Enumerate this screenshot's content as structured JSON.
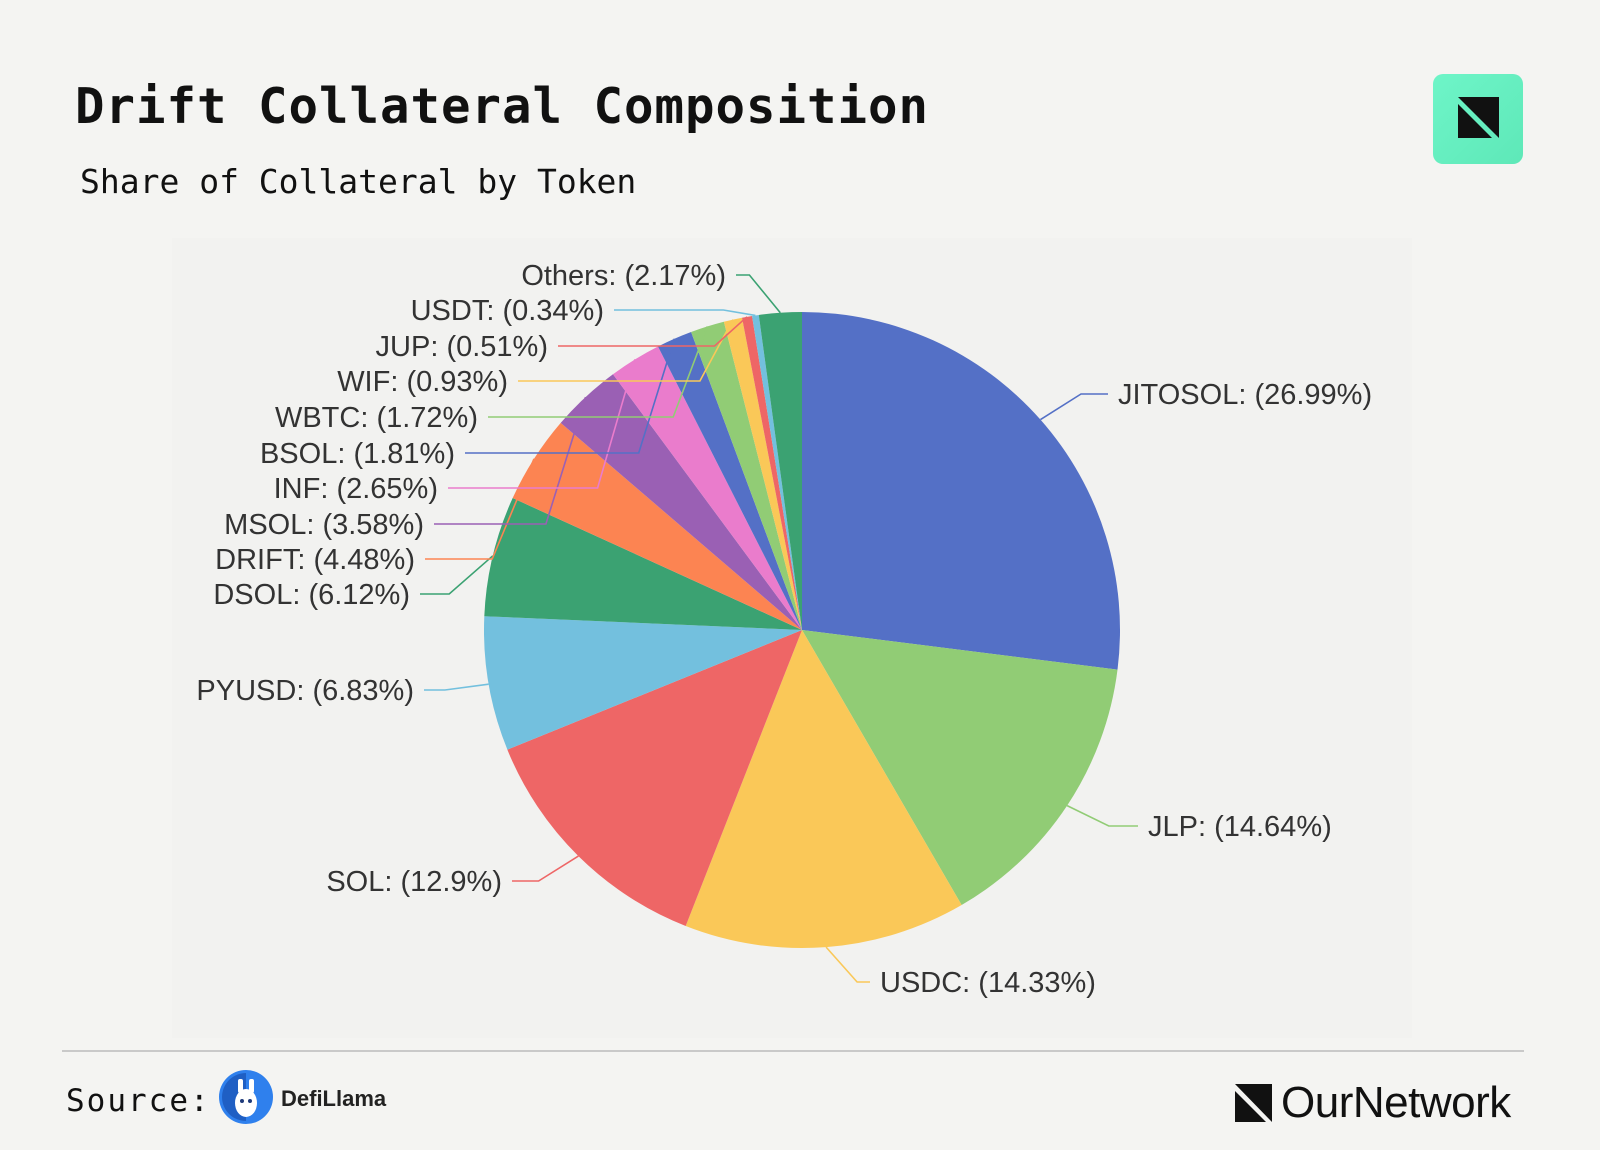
{
  "header": {
    "title": "Drift Collateral Composition",
    "subtitle": "Share of Collateral by Token",
    "brand_icon": "ournetwork-mark-icon"
  },
  "footer": {
    "source_label": "Source:",
    "source_name": "DefiLlama",
    "source_icon": "defillama-llama-icon",
    "publisher_name": "OurNetwork",
    "publisher_icon": "ournetwork-mark-icon"
  },
  "colors": {
    "background": "#f4f4f2",
    "brand_tile": "#6ef5c8"
  },
  "chart_data": {
    "type": "pie",
    "title": "Drift Collateral Composition",
    "subtitle": "Share of Collateral by Token",
    "start_angle": "12 o'clock, clockwise",
    "categories": [
      "JITOSOL",
      "JLP",
      "USDC",
      "SOL",
      "PYUSD",
      "DSOL",
      "DRIFT",
      "MSOL",
      "INF",
      "BSOL",
      "WBTC",
      "WIF",
      "JUP",
      "USDT",
      "Others"
    ],
    "values": [
      26.99,
      14.64,
      14.33,
      12.9,
      6.83,
      6.12,
      4.48,
      3.58,
      2.65,
      1.81,
      1.72,
      0.93,
      0.51,
      0.34,
      2.17
    ],
    "labels": [
      "JITOSOL: (26.99%)",
      "JLP: (14.64%)",
      "USDC: (14.33%)",
      "SOL: (12.9%)",
      "PYUSD: (6.83%)",
      "DSOL: (6.12%)",
      "DRIFT: (4.48%)",
      "MSOL: (3.58%)",
      "INF: (2.65%)",
      "BSOL: (1.81%)",
      "WBTC: (1.72%)",
      "WIF: (0.93%)",
      "JUP: (0.51%)",
      "USDT: (0.34%)",
      "Others: (2.17%)"
    ],
    "colors": [
      "#5470c6",
      "#91cc75",
      "#fac858",
      "#ee6666",
      "#73c0de",
      "#3ba272",
      "#fc8452",
      "#9a60b4",
      "#ea7ccc",
      "#5470c6",
      "#91cc75",
      "#fac858",
      "#ee6666",
      "#73c0de",
      "#3ba272"
    ],
    "unit": "%"
  }
}
